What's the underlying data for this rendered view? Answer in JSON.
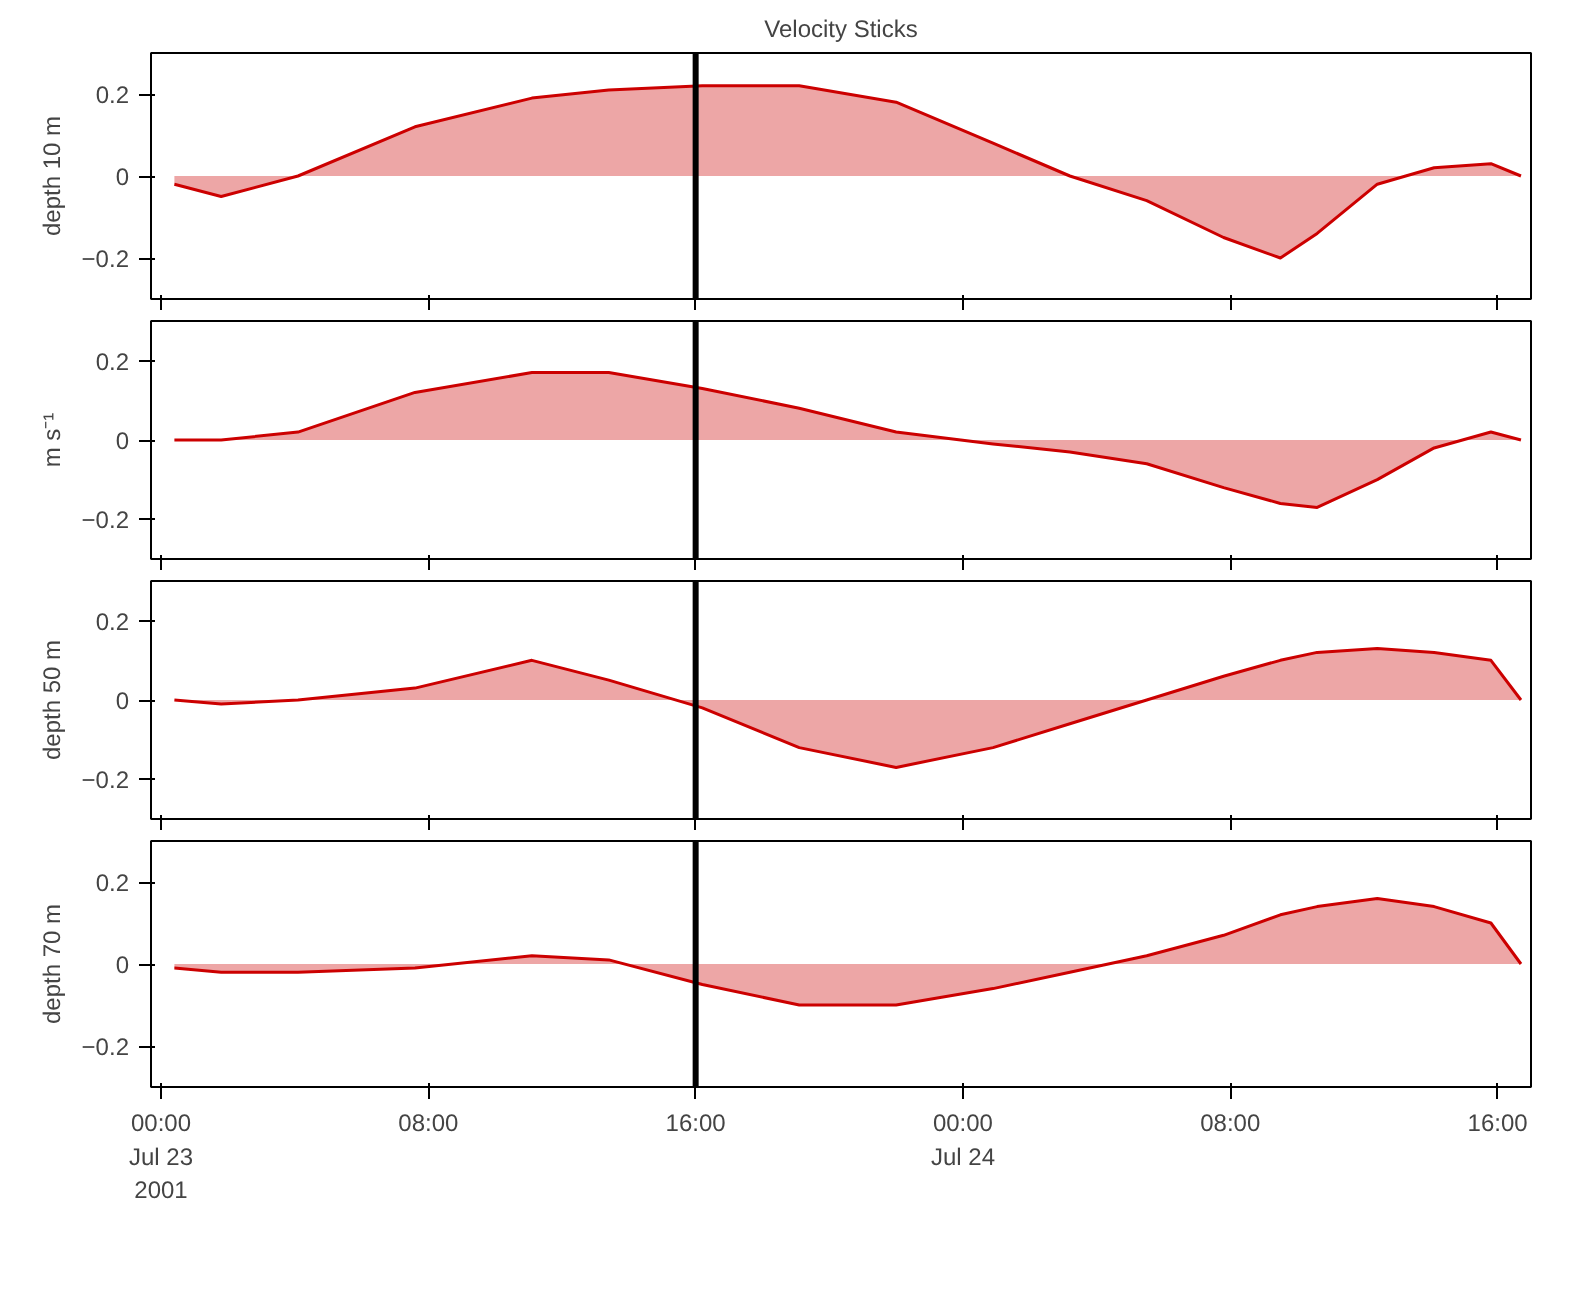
{
  "chart_data": [
    {
      "type": "area",
      "title": "Velocity Sticks",
      "ylabel": "depth 10 m",
      "color": "#cc0000",
      "x": [
        "2001-07-23T00:24",
        "2001-07-23T01:48",
        "2001-07-23T04:06",
        "2001-07-23T07:36",
        "2001-07-23T11:06",
        "2001-07-23T13:24",
        "2001-07-23T16:12",
        "2001-07-23T19:06",
        "2001-07-23T22:00",
        "2001-07-24T00:54",
        "2001-07-24T03:12",
        "2001-07-24T05:30",
        "2001-07-24T07:48",
        "2001-07-24T09:30",
        "2001-07-24T10:36",
        "2001-07-24T12:24",
        "2001-07-24T14:06",
        "2001-07-24T15:48",
        "2001-07-24T16:42"
      ],
      "values": [
        -0.02,
        -0.05,
        0,
        0.12,
        0.19,
        0.21,
        0.22,
        0.22,
        0.18,
        0.08,
        0,
        -0.06,
        -0.15,
        -0.2,
        -0.14,
        -0.02,
        0.02,
        0.03,
        0
      ],
      "xlim": [
        "2001-07-22T23:42",
        "2001-07-24T17:00"
      ],
      "ylim": [
        -0.3,
        0.3
      ],
      "yticks": [
        -0.2,
        0,
        0.2
      ],
      "xticks": [
        {
          "value": "2001-07-23T00:00",
          "label": null
        },
        {
          "value": "2001-07-23T08:00",
          "label": null
        },
        {
          "value": "2001-07-23T16:00",
          "label": null
        },
        {
          "value": "2001-07-24T00:00",
          "label": null
        },
        {
          "value": "2001-07-24T08:00",
          "label": null
        },
        {
          "value": "2001-07-24T16:00",
          "label": null
        }
      ],
      "tick_labels": "y",
      "ref_lines": [
        {
          "axis": "x",
          "value": "2001-07-23T16:00",
          "color": "#000000"
        }
      ]
    },
    {
      "type": "area",
      "ylabel": "m s⁻¹",
      "color": "#cc0000",
      "x": [
        "2001-07-23T00:24",
        "2001-07-23T01:48",
        "2001-07-23T04:06",
        "2001-07-23T07:36",
        "2001-07-23T11:06",
        "2001-07-23T13:24",
        "2001-07-23T16:12",
        "2001-07-23T19:06",
        "2001-07-23T22:00",
        "2001-07-24T00:54",
        "2001-07-24T03:12",
        "2001-07-24T05:30",
        "2001-07-24T07:48",
        "2001-07-24T09:30",
        "2001-07-24T10:36",
        "2001-07-24T12:24",
        "2001-07-24T14:06",
        "2001-07-24T15:48",
        "2001-07-24T16:42"
      ],
      "values": [
        0,
        0,
        0.02,
        0.12,
        0.17,
        0.17,
        0.13,
        0.08,
        0.02,
        -0.01,
        -0.03,
        -0.06,
        -0.12,
        -0.16,
        -0.17,
        -0.1,
        -0.02,
        0.02,
        0
      ],
      "xlim": [
        "2001-07-22T23:42",
        "2001-07-24T17:00"
      ],
      "ylim": [
        -0.3,
        0.3
      ],
      "yticks": [
        -0.2,
        0,
        0.2
      ],
      "xticks": [
        {
          "value": "2001-07-23T00:00",
          "label": null
        },
        {
          "value": "2001-07-23T08:00",
          "label": null
        },
        {
          "value": "2001-07-23T16:00",
          "label": null
        },
        {
          "value": "2001-07-24T00:00",
          "label": null
        },
        {
          "value": "2001-07-24T08:00",
          "label": null
        },
        {
          "value": "2001-07-24T16:00",
          "label": null
        }
      ],
      "tick_labels": "y",
      "ref_lines": [
        {
          "axis": "x",
          "value": "2001-07-23T16:00",
          "color": "#000000"
        }
      ]
    },
    {
      "type": "area",
      "ylabel": "depth 50 m",
      "color": "#cc0000",
      "x": [
        "2001-07-23T00:24",
        "2001-07-23T01:48",
        "2001-07-23T04:06",
        "2001-07-23T07:36",
        "2001-07-23T11:06",
        "2001-07-23T13:24",
        "2001-07-23T16:12",
        "2001-07-23T19:06",
        "2001-07-23T22:00",
        "2001-07-24T00:54",
        "2001-07-24T03:12",
        "2001-07-24T05:30",
        "2001-07-24T07:48",
        "2001-07-24T09:30",
        "2001-07-24T10:36",
        "2001-07-24T12:24",
        "2001-07-24T14:06",
        "2001-07-24T15:48",
        "2001-07-24T16:42"
      ],
      "values": [
        0,
        -0.01,
        0,
        0.03,
        0.1,
        0.05,
        -0.02,
        -0.12,
        -0.17,
        -0.12,
        -0.06,
        0,
        0.06,
        0.1,
        0.12,
        0.13,
        0.12,
        0.1,
        0
      ],
      "xlim": [
        "2001-07-22T23:42",
        "2001-07-24T17:00"
      ],
      "ylim": [
        -0.3,
        0.3
      ],
      "yticks": [
        -0.2,
        0,
        0.2
      ],
      "xticks": [
        {
          "value": "2001-07-23T00:00",
          "label": null
        },
        {
          "value": "2001-07-23T08:00",
          "label": null
        },
        {
          "value": "2001-07-23T16:00",
          "label": null
        },
        {
          "value": "2001-07-24T00:00",
          "label": null
        },
        {
          "value": "2001-07-24T08:00",
          "label": null
        },
        {
          "value": "2001-07-24T16:00",
          "label": null
        }
      ],
      "tick_labels": "y",
      "ref_lines": [
        {
          "axis": "x",
          "value": "2001-07-23T16:00",
          "color": "#000000"
        }
      ]
    },
    {
      "type": "area",
      "ylabel": "depth 70 m",
      "color": "#cc0000",
      "x": [
        "2001-07-23T00:24",
        "2001-07-23T01:48",
        "2001-07-23T04:06",
        "2001-07-23T07:36",
        "2001-07-23T11:06",
        "2001-07-23T13:24",
        "2001-07-23T16:12",
        "2001-07-23T19:06",
        "2001-07-23T22:00",
        "2001-07-24T00:54",
        "2001-07-24T03:12",
        "2001-07-24T05:30",
        "2001-07-24T07:48",
        "2001-07-24T09:30",
        "2001-07-24T10:36",
        "2001-07-24T12:24",
        "2001-07-24T14:06",
        "2001-07-24T15:48",
        "2001-07-24T16:42"
      ],
      "values": [
        -0.01,
        -0.02,
        -0.02,
        -0.01,
        0.02,
        0.01,
        -0.05,
        -0.1,
        -0.1,
        -0.06,
        -0.02,
        0.02,
        0.07,
        0.12,
        0.14,
        0.16,
        0.14,
        0.1,
        0
      ],
      "xlim": [
        "2001-07-22T23:42",
        "2001-07-24T17:00"
      ],
      "ylim": [
        -0.3,
        0.3
      ],
      "yticks": [
        -0.2,
        0,
        0.2
      ],
      "xticks": [
        {
          "value": "2001-07-23T00:00",
          "label": "00:00\nJul 23\n2001"
        },
        {
          "value": "2001-07-23T08:00",
          "label": "08:00"
        },
        {
          "value": "2001-07-23T16:00",
          "label": "16:00"
        },
        {
          "value": "2001-07-24T00:00",
          "label": "00:00\nJul 24"
        },
        {
          "value": "2001-07-24T08:00",
          "label": "08:00"
        },
        {
          "value": "2001-07-24T16:00",
          "label": "16:00"
        }
      ],
      "ref_lines": [
        {
          "axis": "x",
          "value": "2001-07-23T16:00",
          "color": "#000000"
        }
      ]
    }
  ]
}
